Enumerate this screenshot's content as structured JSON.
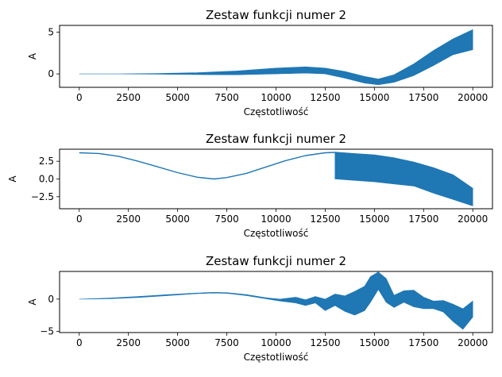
{
  "chart_data": [
    {
      "type": "line",
      "title": "Zestaw funkcji numer 2",
      "xlabel": "Częstotliwość",
      "ylabel": "A",
      "xlim": [
        -1000,
        21000
      ],
      "ylim": [
        -1.6,
        5.8
      ],
      "xticks": [
        0,
        2500,
        5000,
        7500,
        10000,
        12500,
        15000,
        17500,
        20000
      ],
      "xtick_labels": [
        "0",
        "2500",
        "5000",
        "7500",
        "10000",
        "12500",
        "15000",
        "17500",
        "20000"
      ],
      "yticks": [
        0,
        5
      ],
      "ytick_labels": [
        "0",
        "5"
      ],
      "color": "#1f77b4",
      "series": [
        {
          "x": [
            0,
            2000,
            4000,
            6000,
            8000,
            10000,
            11500,
            12500,
            13500,
            14500,
            15200,
            16000,
            17000,
            18000,
            19000,
            20000
          ],
          "upper": [
            0.0,
            0.0,
            0.05,
            0.15,
            0.35,
            0.7,
            0.85,
            0.7,
            0.3,
            -0.3,
            -0.6,
            -0.1,
            1.2,
            2.8,
            4.2,
            5.3
          ],
          "lower": [
            0.0,
            0.0,
            -0.03,
            -0.08,
            -0.1,
            0.0,
            0.1,
            0.0,
            -0.5,
            -1.1,
            -1.3,
            -1.0,
            -0.2,
            1.0,
            2.3,
            2.9
          ]
        }
      ]
    },
    {
      "type": "line",
      "title": "Zestaw funkcji numer 2",
      "xlabel": "Częstotliwość",
      "ylabel": "A",
      "xlim": [
        -1000,
        21000
      ],
      "ylim": [
        -4.2,
        4.2
      ],
      "xticks": [
        0,
        2500,
        5000,
        7500,
        10000,
        12500,
        15000,
        17500,
        20000
      ],
      "xtick_labels": [
        "0",
        "2500",
        "5000",
        "7500",
        "10000",
        "12500",
        "15000",
        "17500",
        "20000"
      ],
      "yticks": [
        2.5,
        0.0,
        -2.5
      ],
      "ytick_labels": [
        "2.5",
        "0.0",
        "−2.5"
      ],
      "color": "#1f77b4",
      "series": [
        {
          "x": [
            0,
            1000,
            2000,
            3000,
            4000,
            5000,
            6000,
            6850,
            7500,
            8500,
            9500,
            10500,
            11500,
            12500,
            13000
          ],
          "y": [
            3.7,
            3.6,
            3.2,
            2.5,
            1.7,
            0.9,
            0.25,
            0.0,
            0.2,
            0.8,
            1.7,
            2.6,
            3.3,
            3.7,
            3.75
          ]
        },
        {
          "x": [
            13000,
            14000,
            15000,
            16000,
            17000,
            18000,
            19000,
            20000
          ],
          "upper": [
            3.8,
            3.6,
            3.4,
            3.0,
            2.4,
            1.6,
            0.6,
            -1.3
          ],
          "lower": [
            0.0,
            -0.2,
            -0.4,
            -0.7,
            -1.0,
            -2.0,
            -2.9,
            -3.8
          ]
        }
      ]
    },
    {
      "type": "line",
      "title": "Zestaw funkcji numer 2",
      "xlabel": "Częstotliwość",
      "ylabel": "A",
      "xlim": [
        -1000,
        21000
      ],
      "ylim": [
        -5.2,
        4.3
      ],
      "xticks": [
        0,
        2500,
        5000,
        7500,
        10000,
        12500,
        15000,
        17500,
        20000
      ],
      "xtick_labels": [
        "0",
        "2500",
        "5000",
        "7500",
        "10000",
        "12500",
        "15000",
        "17500",
        "20000"
      ],
      "yticks": [
        0,
        -5
      ],
      "ytick_labels": [
        "0",
        "−5"
      ],
      "color": "#1f77b4",
      "series": [
        {
          "x": [
            0,
            1500,
            3000,
            4500,
            6000,
            6800,
            7500,
            8500,
            9500,
            10200,
            11000,
            11500,
            12000,
            12500,
            13000,
            13500,
            14000,
            14500,
            14800,
            15200,
            15600,
            16000,
            16500,
            17000,
            17500,
            18000,
            18500,
            19000,
            19500,
            20000
          ],
          "upper": [
            0.0,
            0.15,
            0.4,
            0.7,
            0.95,
            1.05,
            1.0,
            0.7,
            0.2,
            0.0,
            0.3,
            -0.1,
            0.4,
            0.0,
            0.8,
            0.5,
            1.2,
            2.0,
            3.5,
            4.2,
            3.2,
            0.6,
            1.3,
            1.4,
            0.3,
            -0.3,
            -0.2,
            -0.8,
            -1.5,
            -0.3
          ],
          "lower": [
            0.0,
            0.05,
            0.25,
            0.55,
            0.85,
            0.95,
            0.9,
            0.55,
            0.05,
            -0.3,
            -0.6,
            -1.0,
            -0.6,
            -1.8,
            -1.0,
            -1.9,
            -2.5,
            -1.8,
            -0.5,
            1.5,
            -0.5,
            -1.3,
            -0.5,
            -1.2,
            -1.5,
            -1.5,
            -2.0,
            -3.5,
            -4.7,
            -2.8
          ]
        }
      ]
    }
  ]
}
